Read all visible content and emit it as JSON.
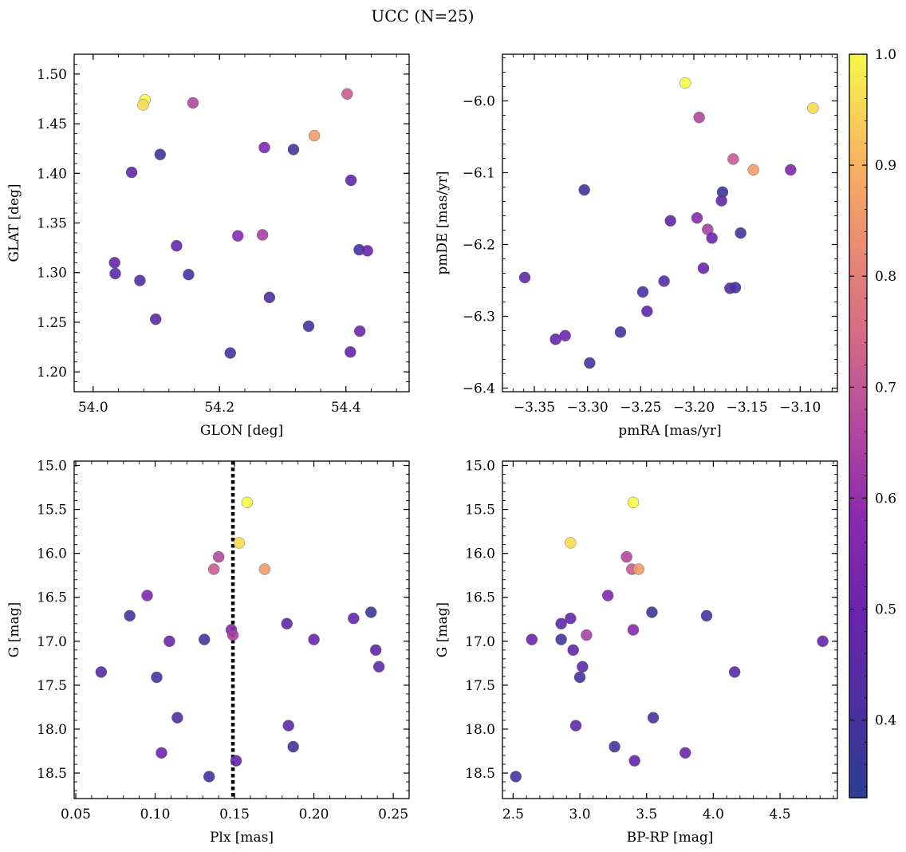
{
  "figure": {
    "title": "UCC (N=25)"
  },
  "colorbar": {
    "min": 0.33,
    "max": 1.0,
    "ticks": [
      0.4,
      0.5,
      0.6,
      0.7,
      0.8,
      0.9,
      1.0
    ],
    "tick_labels": [
      "0.4",
      "0.5",
      "0.6",
      "0.7",
      "0.8",
      "0.9",
      "1.0"
    ],
    "colormap": "plasma"
  },
  "chart_data": [
    {
      "type": "scatter",
      "xlabel": "GLON [deg]",
      "ylabel": "GLAT [deg]",
      "xlim": [
        53.97,
        54.5
      ],
      "ylim": [
        1.18,
        1.52
      ],
      "y_inverted": false,
      "xticks": [
        54.0,
        54.2,
        54.4
      ],
      "xtick_labels": [
        "54.0",
        "54.2",
        "54.4"
      ],
      "yticks": [
        1.2,
        1.25,
        1.3,
        1.35,
        1.4,
        1.45,
        1.5
      ],
      "ytick_labels": [
        "1.20",
        "1.25",
        "1.30",
        "1.35",
        "1.40",
        "1.45",
        "1.50"
      ],
      "x": [
        54.082,
        54.079,
        54.158,
        54.402,
        54.35,
        54.271,
        54.317,
        54.106,
        54.061,
        54.408,
        54.229,
        54.268,
        54.132,
        54.421,
        54.434,
        54.034,
        54.035,
        54.074,
        54.151,
        54.279,
        54.099,
        54.341,
        54.422,
        54.407,
        54.217
      ],
      "y": [
        1.474,
        1.469,
        1.471,
        1.48,
        1.438,
        1.426,
        1.424,
        1.419,
        1.401,
        1.393,
        1.337,
        1.338,
        1.327,
        1.323,
        1.322,
        1.31,
        1.299,
        1.292,
        1.298,
        1.275,
        1.253,
        1.246,
        1.241,
        1.22,
        1.219
      ]
    },
    {
      "type": "scatter",
      "xlabel": "pmRA [mas/yr]",
      "ylabel": "pmDE [mas/yr]",
      "xlim": [
        -3.38,
        -3.065
      ],
      "ylim": [
        -6.405,
        -5.935
      ],
      "y_inverted": false,
      "xticks": [
        -3.35,
        -3.3,
        -3.25,
        -3.2,
        -3.15,
        -3.1
      ],
      "xtick_labels": [
        "−3.35",
        "−3.30",
        "−3.25",
        "−3.20",
        "−3.15",
        "−3.10"
      ],
      "yticks": [
        -6.4,
        -6.3,
        -6.2,
        -6.1,
        -6.0
      ],
      "ytick_labels": [
        "−6.4",
        "−6.3",
        "−6.2",
        "−6.1",
        "−6.0"
      ],
      "x": [
        -3.208,
        -3.088,
        -3.195,
        -3.163,
        -3.144,
        -3.109,
        -3.303,
        -3.173,
        -3.174,
        -3.222,
        -3.197,
        -3.187,
        -3.183,
        -3.156,
        -3.191,
        -3.359,
        -3.228,
        -3.166,
        -3.161,
        -3.248,
        -3.244,
        -3.269,
        -3.321,
        -3.33,
        -3.298
      ],
      "y": [
        -5.975,
        -6.01,
        -6.023,
        -6.081,
        -6.096,
        -6.096,
        -6.124,
        -6.127,
        -6.139,
        -6.167,
        -6.163,
        -6.179,
        -6.191,
        -6.184,
        -6.233,
        -6.246,
        -6.251,
        -6.261,
        -6.26,
        -6.266,
        -6.293,
        -6.322,
        -6.327,
        -6.332,
        -6.365
      ]
    },
    {
      "type": "scatter",
      "xlabel": "Plx [mas]",
      "ylabel": "G [mag]",
      "xlim": [
        0.049,
        0.26
      ],
      "ylim": [
        18.79,
        14.95
      ],
      "y_inverted": true,
      "vline": {
        "x": 0.149,
        "style": "dotted"
      },
      "xticks": [
        0.05,
        0.1,
        0.15,
        0.2,
        0.25
      ],
      "xtick_labels": [
        "0.05",
        "0.10",
        "0.15",
        "0.20",
        "0.25"
      ],
      "yticks": [
        15.0,
        15.5,
        16.0,
        16.5,
        17.0,
        17.5,
        18.0,
        18.5
      ],
      "ytick_labels": [
        "15.0",
        "15.5",
        "16.0",
        "16.5",
        "17.0",
        "17.5",
        "18.0",
        "18.5"
      ],
      "x": [
        0.158,
        0.153,
        0.14,
        0.137,
        0.169,
        0.095,
        0.084,
        0.236,
        0.183,
        0.225,
        0.148,
        0.149,
        0.109,
        0.131,
        0.2,
        0.239,
        0.241,
        0.066,
        0.101,
        0.114,
        0.184,
        0.187,
        0.104,
        0.151,
        0.134
      ],
      "y": [
        15.42,
        15.88,
        16.04,
        16.18,
        16.18,
        16.48,
        16.71,
        16.67,
        16.8,
        16.74,
        16.87,
        16.93,
        17.0,
        16.98,
        16.98,
        17.1,
        17.29,
        17.35,
        17.41,
        17.87,
        17.96,
        18.2,
        18.27,
        18.36,
        18.54
      ]
    },
    {
      "type": "scatter",
      "xlabel": "BP-RP [mag]",
      "ylabel": "G [mag]",
      "xlim": [
        2.42,
        4.93
      ],
      "ylim": [
        18.79,
        14.95
      ],
      "y_inverted": true,
      "xticks": [
        2.5,
        3.0,
        3.5,
        4.0,
        4.5
      ],
      "xtick_labels": [
        "2.5",
        "3.0",
        "3.5",
        "4.0",
        "4.5"
      ],
      "yticks": [
        15.0,
        15.5,
        16.0,
        16.5,
        17.0,
        17.5,
        18.0,
        18.5
      ],
      "ytick_labels": [
        "15.0",
        "15.5",
        "16.0",
        "16.5",
        "17.0",
        "17.5",
        "18.0",
        "18.5"
      ],
      "x": [
        3.4,
        2.93,
        3.35,
        3.39,
        3.44,
        3.21,
        3.95,
        3.54,
        2.86,
        2.93,
        3.4,
        3.05,
        4.82,
        2.86,
        2.64,
        2.95,
        3.02,
        4.16,
        3.0,
        3.55,
        2.97,
        3.26,
        3.79,
        3.41,
        2.52
      ],
      "y": [
        15.42,
        15.88,
        16.04,
        16.18,
        16.18,
        16.48,
        16.71,
        16.67,
        16.8,
        16.74,
        16.87,
        16.93,
        17.0,
        16.98,
        16.98,
        17.1,
        17.29,
        17.35,
        17.41,
        17.87,
        17.96,
        18.2,
        18.27,
        18.36,
        18.54
      ]
    }
  ],
  "point_colors": [
    1.0,
    0.96,
    0.66,
    0.71,
    0.86,
    0.55,
    0.39,
    0.37,
    0.47,
    0.48,
    0.57,
    0.64,
    0.49,
    0.39,
    0.5,
    0.47,
    0.45,
    0.44,
    0.4,
    0.42,
    0.46,
    0.39,
    0.51,
    0.48,
    0.4
  ]
}
